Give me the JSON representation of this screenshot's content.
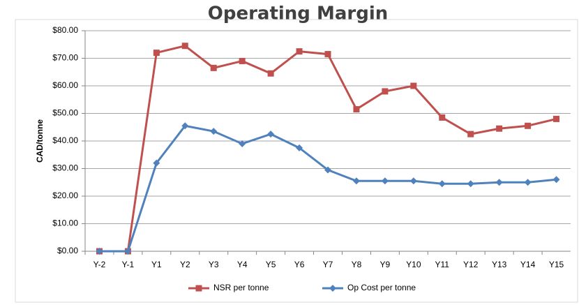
{
  "chart_data": {
    "type": "line",
    "title": "Operating Margin",
    "y_label": "CAD/tonne",
    "categories": [
      "Y-2",
      "Y-1",
      "Y1",
      "Y2",
      "Y3",
      "Y4",
      "Y5",
      "Y6",
      "Y7",
      "Y8",
      "Y9",
      "Y10",
      "Y11",
      "Y12",
      "Y13",
      "Y14",
      "Y15"
    ],
    "series": [
      {
        "name": "NSR per tonne",
        "color": "#c0504d",
        "marker": "square",
        "values": [
          0,
          0,
          72,
          74.5,
          66.5,
          69,
          64.5,
          72.5,
          71.5,
          51.5,
          58,
          60,
          48.5,
          42.5,
          44.5,
          45.5,
          48
        ]
      },
      {
        "name": "Op Cost per tonne",
        "color": "#4f81bd",
        "marker": "diamond",
        "values": [
          0,
          0,
          32,
          45.5,
          43.5,
          39,
          42.5,
          37.5,
          29.5,
          25.5,
          25.5,
          25.5,
          24.5,
          24.5,
          25,
          25,
          26
        ]
      }
    ],
    "ylim": [
      0,
      80
    ],
    "yticks": [
      {
        "value": 0,
        "label": "$0.00"
      },
      {
        "value": 10,
        "label": "$10.00"
      },
      {
        "value": 20,
        "label": "$20.00"
      },
      {
        "value": 30,
        "label": "$30.00"
      },
      {
        "value": 40,
        "label": "$40.00"
      },
      {
        "value": 50,
        "label": "$50.00"
      },
      {
        "value": 60,
        "label": "$60.00"
      },
      {
        "value": 70,
        "label": "$70.00"
      },
      {
        "value": 80,
        "label": "$80.00"
      }
    ],
    "grid": true,
    "legend": "bottom"
  }
}
